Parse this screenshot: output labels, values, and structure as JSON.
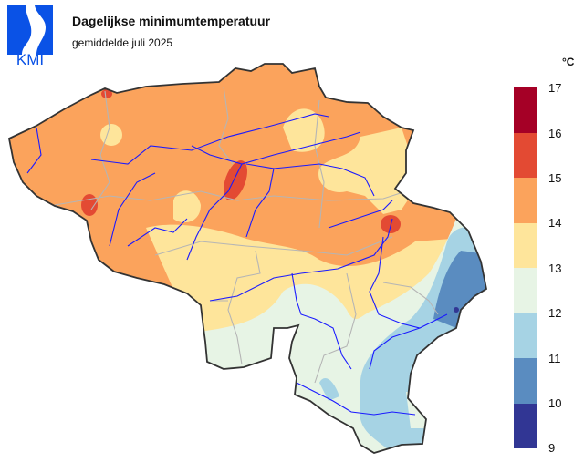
{
  "logo": {
    "text": "KMI",
    "color": "#0a52e6"
  },
  "title": "Dagelijkse minimumtemperatuur",
  "subtitle": "gemiddelde juli 2025",
  "legend": {
    "unit": "°C",
    "ticks": [
      "17",
      "16",
      "15",
      "14",
      "13",
      "12",
      "11",
      "10",
      "9"
    ],
    "bands": [
      {
        "range": "16-17",
        "color": "#a50026"
      },
      {
        "range": "15-16",
        "color": "#e34a33"
      },
      {
        "range": "14-15",
        "color": "#fba35c"
      },
      {
        "range": "13-14",
        "color": "#fee59b"
      },
      {
        "range": "12-13",
        "color": "#e7f4e5"
      },
      {
        "range": "11-12",
        "color": "#a6d3e4"
      },
      {
        "range": "10-11",
        "color": "#5a8cc0"
      },
      {
        "range": "9-10",
        "color": "#313694"
      }
    ]
  }
}
